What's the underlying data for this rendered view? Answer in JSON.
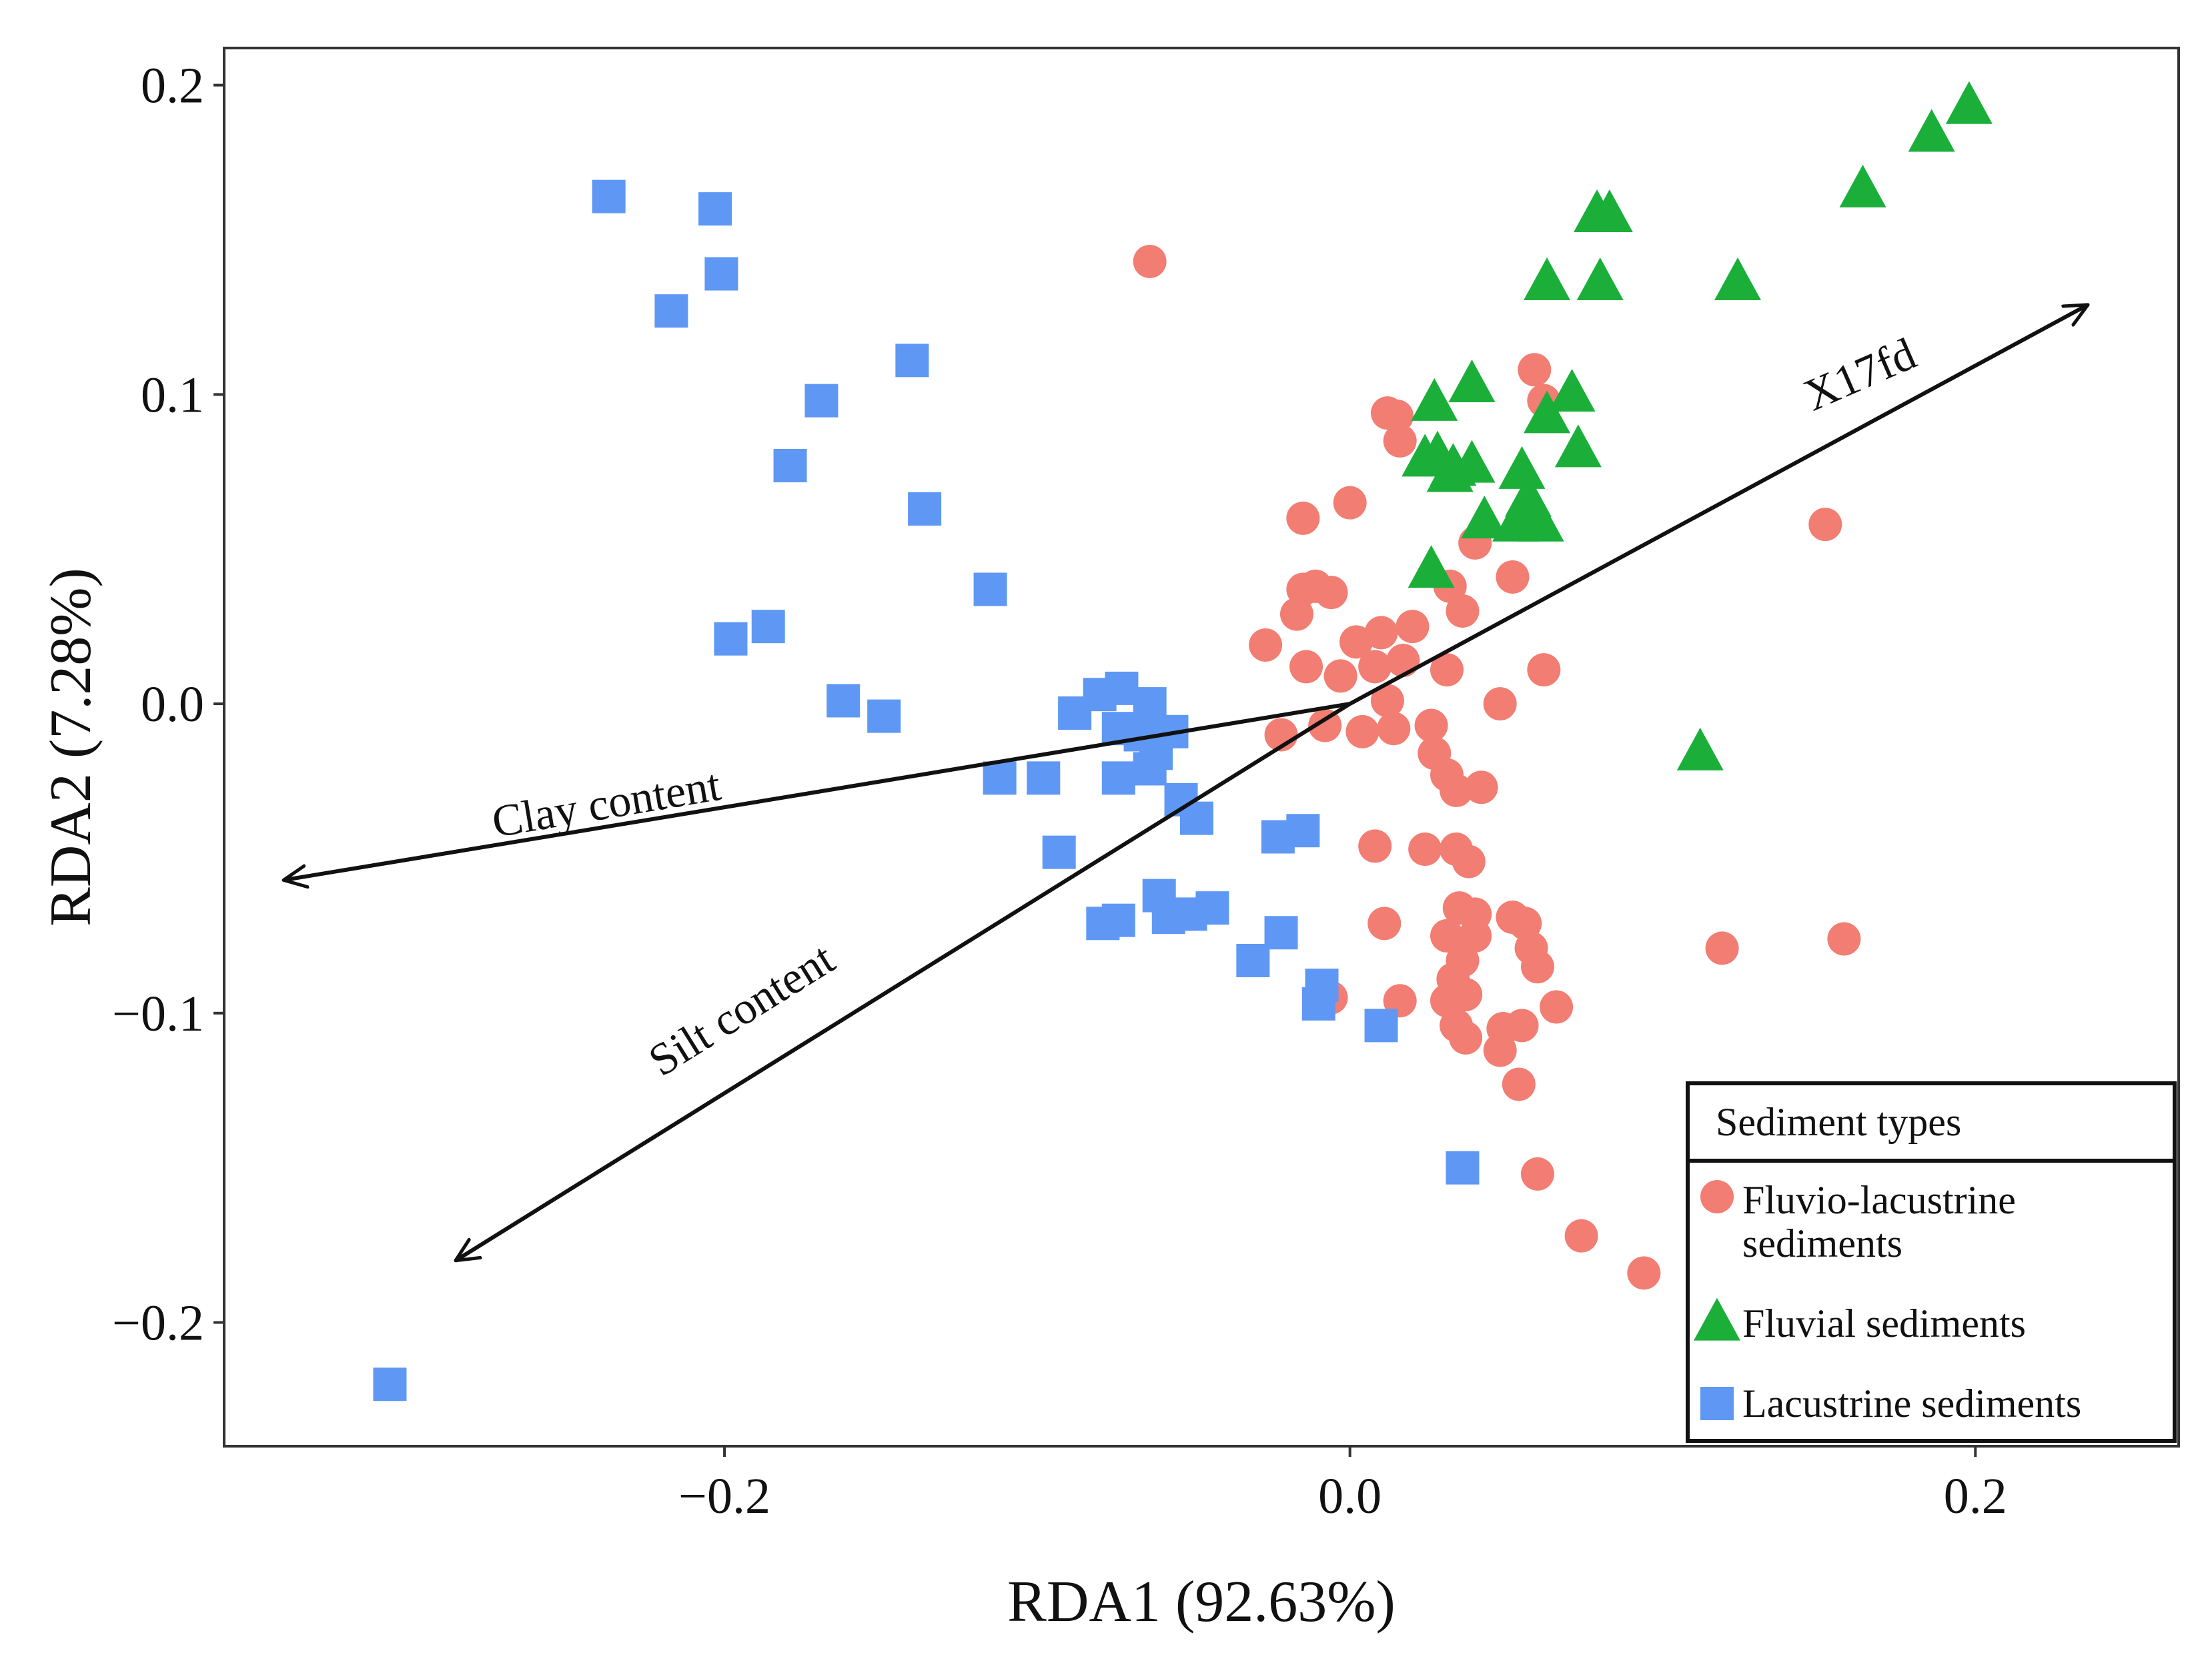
{
  "chart_data": {
    "type": "scatter",
    "title": "",
    "xlabel": "RDA1 (92.63%)",
    "ylabel": "RDA2 (7.28%)",
    "xlim": [
      -0.36,
      0.265
    ],
    "ylim": [
      -0.24,
      0.212
    ],
    "grid": false,
    "xticks": [
      {
        "value": -0.2,
        "label": "−0.2"
      },
      {
        "value": 0.0,
        "label": "0.0"
      },
      {
        "value": 0.2,
        "label": "0.2"
      }
    ],
    "yticks": [
      {
        "value": 0.2,
        "label": "0.2"
      },
      {
        "value": 0.1,
        "label": "0.1"
      },
      {
        "value": 0.0,
        "label": "0.0"
      },
      {
        "value": -0.1,
        "label": "−0.1"
      },
      {
        "value": -0.2,
        "label": "−0.2"
      }
    ],
    "legend": {
      "title": "Sediment types",
      "position": "bottom-right"
    },
    "series": [
      {
        "name": "Fluvio-lacustrine sediments",
        "legend_lines": [
          "Fluvio-lacustrine",
          "sediments"
        ],
        "marker": "circle",
        "color": "#F27D72",
        "points": [
          [
            -0.064,
            0.143
          ],
          [
            0.012,
            0.094
          ],
          [
            0.015,
            0.093
          ],
          [
            0.016,
            0.085
          ],
          [
            0.059,
            0.108
          ],
          [
            0.062,
            0.098
          ],
          [
            0.0,
            0.065
          ],
          [
            -0.015,
            0.06
          ],
          [
            0.04,
            0.052
          ],
          [
            0.152,
            0.058
          ],
          [
            -0.015,
            0.037
          ],
          [
            -0.011,
            0.038
          ],
          [
            -0.006,
            0.036
          ],
          [
            0.032,
            0.038
          ],
          [
            0.052,
            0.041
          ],
          [
            -0.017,
            0.029
          ],
          [
            0.036,
            0.03
          ],
          [
            -0.027,
            0.019
          ],
          [
            0.002,
            0.02
          ],
          [
            0.01,
            0.023
          ],
          [
            0.02,
            0.025
          ],
          [
            -0.014,
            0.012
          ],
          [
            -0.003,
            0.009
          ],
          [
            0.008,
            0.012
          ],
          [
            0.017,
            0.014
          ],
          [
            0.031,
            0.011
          ],
          [
            0.062,
            0.011
          ],
          [
            0.012,
            0.001
          ],
          [
            0.048,
            0.0
          ],
          [
            -0.008,
            -0.007
          ],
          [
            0.004,
            -0.009
          ],
          [
            0.014,
            -0.008
          ],
          [
            0.026,
            -0.007
          ],
          [
            -0.022,
            -0.01
          ],
          [
            0.027,
            -0.016
          ],
          [
            0.031,
            -0.023
          ],
          [
            0.034,
            -0.028
          ],
          [
            0.042,
            -0.027
          ],
          [
            0.008,
            -0.046
          ],
          [
            0.024,
            -0.047
          ],
          [
            0.034,
            -0.047
          ],
          [
            0.038,
            -0.051
          ],
          [
            0.035,
            -0.066
          ],
          [
            0.04,
            -0.068
          ],
          [
            0.052,
            -0.069
          ],
          [
            0.056,
            -0.071
          ],
          [
            0.011,
            -0.071
          ],
          [
            0.031,
            -0.075
          ],
          [
            0.04,
            -0.075
          ],
          [
            0.058,
            -0.079
          ],
          [
            0.036,
            -0.083
          ],
          [
            0.06,
            -0.085
          ],
          [
            0.033,
            -0.089
          ],
          [
            0.037,
            -0.094
          ],
          [
            0.016,
            -0.096
          ],
          [
            0.031,
            -0.096
          ],
          [
            -0.006,
            -0.095
          ],
          [
            0.034,
            -0.104
          ],
          [
            0.049,
            -0.105
          ],
          [
            0.055,
            -0.104
          ],
          [
            0.066,
            -0.098
          ],
          [
            0.037,
            -0.108
          ],
          [
            0.048,
            -0.112
          ],
          [
            0.054,
            -0.123
          ],
          [
            0.06,
            -0.152
          ],
          [
            0.074,
            -0.172
          ],
          [
            0.094,
            -0.184
          ],
          [
            0.119,
            -0.079
          ],
          [
            0.158,
            -0.076
          ]
        ]
      },
      {
        "name": "Fluvial sediments",
        "legend_lines": [
          "Fluvial sediments"
        ],
        "marker": "triangle",
        "color": "#1BAF3A",
        "points": [
          [
            0.198,
            0.193
          ],
          [
            0.186,
            0.184
          ],
          [
            0.164,
            0.166
          ],
          [
            0.079,
            0.158
          ],
          [
            0.083,
            0.158
          ],
          [
            0.063,
            0.136
          ],
          [
            0.08,
            0.136
          ],
          [
            0.124,
            0.136
          ],
          [
            0.039,
            0.103
          ],
          [
            0.027,
            0.097
          ],
          [
            0.071,
            0.1
          ],
          [
            0.063,
            0.093
          ],
          [
            0.073,
            0.082
          ],
          [
            0.024,
            0.079
          ],
          [
            0.028,
            0.08
          ],
          [
            0.033,
            0.076
          ],
          [
            0.039,
            0.077
          ],
          [
            0.055,
            0.075
          ],
          [
            0.032,
            0.074
          ],
          [
            0.057,
            0.066
          ],
          [
            0.043,
            0.059
          ],
          [
            0.053,
            0.058
          ],
          [
            0.058,
            0.063
          ],
          [
            0.061,
            0.058
          ],
          [
            0.026,
            0.043
          ],
          [
            0.112,
            -0.016
          ]
        ]
      },
      {
        "name": "Lacustrine sediments",
        "legend_lines": [
          "Lacustrine sediments"
        ],
        "marker": "square",
        "color": "#5F98F4",
        "points": [
          [
            -0.237,
            0.164
          ],
          [
            -0.203,
            0.16
          ],
          [
            -0.217,
            0.127
          ],
          [
            -0.201,
            0.139
          ],
          [
            -0.14,
            0.111
          ],
          [
            -0.169,
            0.098
          ],
          [
            -0.179,
            0.077
          ],
          [
            -0.136,
            0.063
          ],
          [
            -0.115,
            0.037
          ],
          [
            -0.198,
            0.021
          ],
          [
            -0.186,
            0.025
          ],
          [
            -0.162,
            0.001
          ],
          [
            -0.149,
            -0.004
          ],
          [
            -0.088,
            -0.003
          ],
          [
            -0.073,
            0.005
          ],
          [
            -0.08,
            0.003
          ],
          [
            -0.064,
            0.0
          ],
          [
            -0.074,
            -0.008
          ],
          [
            -0.067,
            -0.01
          ],
          [
            -0.057,
            -0.009
          ],
          [
            -0.062,
            -0.016
          ],
          [
            -0.074,
            -0.024
          ],
          [
            -0.064,
            -0.021
          ],
          [
            -0.112,
            -0.024
          ],
          [
            -0.098,
            -0.024
          ],
          [
            -0.054,
            -0.031
          ],
          [
            -0.049,
            -0.037
          ],
          [
            -0.093,
            -0.048
          ],
          [
            -0.023,
            -0.043
          ],
          [
            -0.015,
            -0.041
          ],
          [
            -0.079,
            -0.071
          ],
          [
            -0.074,
            -0.07
          ],
          [
            -0.061,
            -0.062
          ],
          [
            -0.058,
            -0.069
          ],
          [
            -0.051,
            -0.068
          ],
          [
            -0.044,
            -0.066
          ],
          [
            -0.031,
            -0.083
          ],
          [
            -0.022,
            -0.074
          ],
          [
            -0.009,
            -0.091
          ],
          [
            -0.01,
            -0.097
          ],
          [
            0.01,
            -0.104
          ],
          [
            0.036,
            -0.15
          ],
          [
            -0.307,
            -0.22
          ]
        ]
      }
    ],
    "arrows": [
      {
        "label": "X17fd",
        "end": [
          0.236,
          0.129
        ],
        "label_at": [
          0.165,
          0.102
        ],
        "angle": -23.5
      },
      {
        "label": "Clay content",
        "end": [
          -0.341,
          -0.057
        ],
        "label_at": [
          -0.237,
          -0.037
        ],
        "angle": -9.5
      },
      {
        "label": "Silt content",
        "end": [
          -0.286,
          -0.18
        ],
        "label_at": [
          -0.192,
          -0.103
        ],
        "angle": -32
      }
    ]
  }
}
